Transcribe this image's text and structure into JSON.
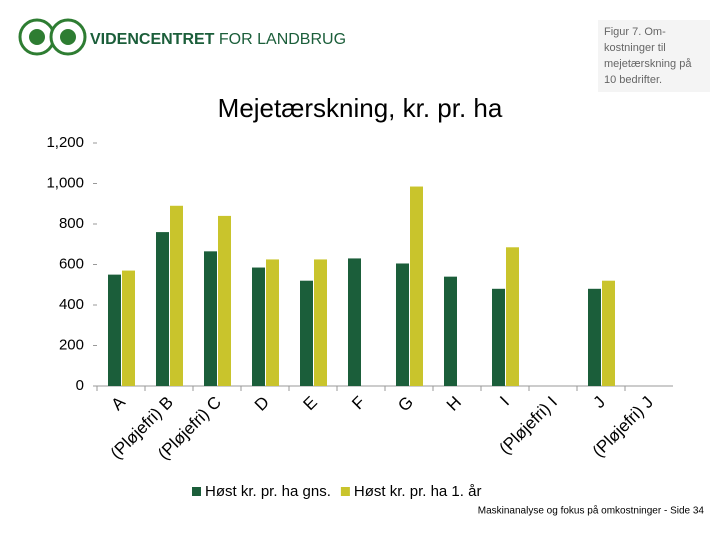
{
  "header": {
    "brand_bold": "VIDENCENTRET",
    "brand_light": "FOR LANDBRUG",
    "caption": [
      "Figur 7. Om-",
      "kostninger til",
      "mejetærskning på",
      "10 bedrifter."
    ]
  },
  "chart_data": {
    "type": "bar",
    "title": "Mejetærskning, kr. pr. ha",
    "categories": [
      "A",
      "(Pløjefri) B",
      "(Pløjefri) C",
      "D",
      "E",
      "F",
      "G",
      "H",
      "I",
      "(Pløjefri) I",
      "J",
      "(Pløjefri) J"
    ],
    "series": [
      {
        "name": "Høst kr. pr. ha gns.",
        "color": "#1b5e3a",
        "values": [
          550,
          760,
          665,
          585,
          520,
          630,
          605,
          540,
          480,
          null,
          480,
          null
        ]
      },
      {
        "name": "Høst kr. pr. ha 1. år",
        "color": "#c9c42c",
        "values": [
          570,
          890,
          840,
          625,
          625,
          null,
          985,
          null,
          685,
          null,
          520,
          null
        ]
      }
    ],
    "ylim": [
      0,
      1200
    ],
    "yticks": [
      0,
      200,
      400,
      600,
      800,
      {
        "value": 1000,
        "label": "1,000"
      },
      {
        "value": 1200,
        "label": "1,200"
      }
    ],
    "legend": "bottom"
  },
  "footer": "Maskinanalyse og fokus på omkostninger - Side 34"
}
